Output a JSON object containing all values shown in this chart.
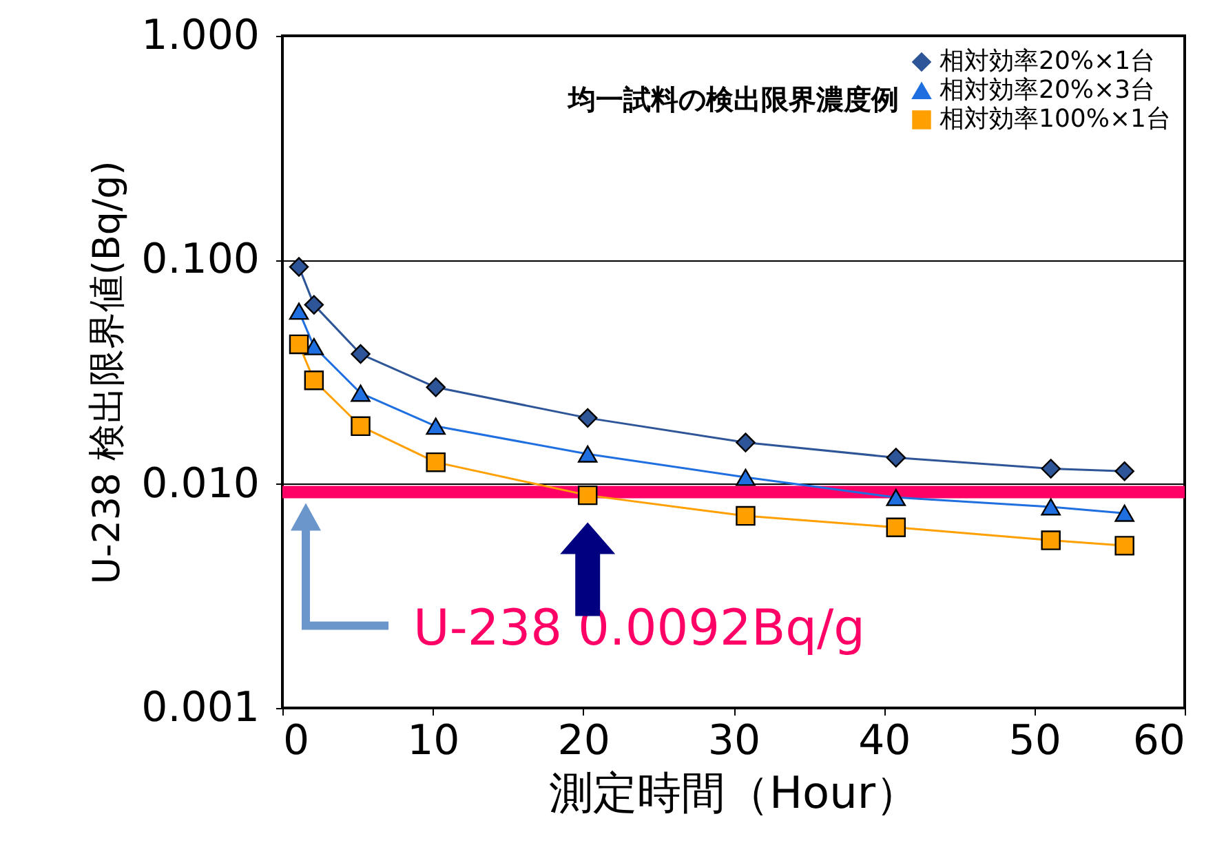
{
  "chart_data": {
    "type": "line",
    "title": "均一試料の検出限界濃度例",
    "xlabel": "測定時間（Hour）",
    "ylabel": "U-238 検出限界値(Bq/g)",
    "x": [
      1.1,
      2.1,
      5.2,
      10.2,
      20.3,
      30.8,
      40.8,
      51.1,
      56
    ],
    "series": [
      {
        "name": "相対効率20%×1台",
        "color": "#2e5597",
        "marker": "diamond",
        "values": [
          0.093,
          0.063,
          0.038,
          0.027,
          0.0197,
          0.0153,
          0.0131,
          0.0117,
          0.0114
        ]
      },
      {
        "name": "相対効率20%×3台",
        "color": "#1f6fe0",
        "marker": "triangle",
        "values": [
          0.059,
          0.041,
          0.0254,
          0.0181,
          0.0136,
          0.0107,
          0.0087,
          0.0079,
          0.0074
        ]
      },
      {
        "name": "相対効率100%×1台",
        "color": "#ffa000",
        "marker": "square",
        "values": [
          0.042,
          0.029,
          0.0181,
          0.0125,
          0.0089,
          0.0072,
          0.0064,
          0.0056,
          0.0053
        ]
      }
    ],
    "xlim": [
      0,
      60
    ],
    "xticks": [
      0,
      10,
      20,
      30,
      40,
      50,
      60
    ],
    "ylim": [
      0.001,
      1
    ],
    "yticks": [
      {
        "value": 0.001,
        "label": "0.001"
      },
      {
        "value": 0.01,
        "label": "0.010"
      },
      {
        "value": 0.1,
        "label": "0.100"
      },
      {
        "value": 1,
        "label": "1.000"
      }
    ],
    "log": "y",
    "grid": "y",
    "legend": "top right",
    "ref_lines": [
      {
        "axis": "y",
        "value": 0.0092,
        "label": "U-238 0.0092Bq/g",
        "color": "#ff0066"
      }
    ]
  }
}
